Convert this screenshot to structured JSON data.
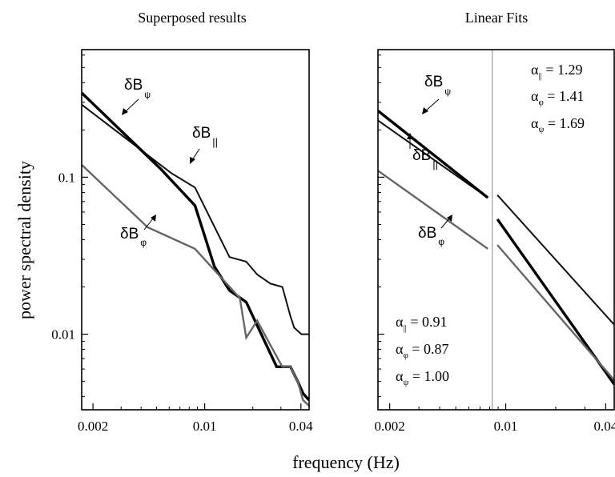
{
  "figure": {
    "ylabel": "power spectral density",
    "xlabel": "frequency (Hz)"
  },
  "chart_data": [
    {
      "type": "line",
      "title": "Superposed results",
      "xscale": "log",
      "yscale": "log",
      "xlim": [
        0.0017,
        0.045
      ],
      "ylim": [
        0.0033,
        0.65
      ],
      "xticks": [
        0.002,
        0.01,
        0.04
      ],
      "xtick_labels": [
        "0.002",
        "0.01",
        "0.04"
      ],
      "yticks": [
        0.01,
        0.1
      ],
      "ytick_labels": [
        "0.01",
        "0.1"
      ],
      "grid": false,
      "series": [
        {
          "name": "δB∥",
          "color": "#111111",
          "width": 2.0,
          "x": [
            0.0017,
            0.0062,
            0.0087,
            0.0143,
            0.0182,
            0.0213,
            0.0258,
            0.0306,
            0.0344,
            0.0363,
            0.0403,
            0.045
          ],
          "y": [
            0.29,
            0.106,
            0.086,
            0.031,
            0.029,
            0.024,
            0.021,
            0.02,
            0.013,
            0.011,
            0.01,
            0.01
          ]
        },
        {
          "name": "δBψ",
          "color": "#000000",
          "width": 3.4,
          "x": [
            0.0017,
            0.0053,
            0.0087,
            0.0115,
            0.0143,
            0.0182,
            0.0226,
            0.0282,
            0.0306,
            0.0344,
            0.0382,
            0.0412,
            0.045
          ],
          "y": [
            0.345,
            0.113,
            0.066,
            0.027,
            0.019,
            0.016,
            0.01,
            0.0062,
            0.0062,
            0.0062,
            0.005,
            0.0042,
            0.0038
          ]
        },
        {
          "name": "δBφ",
          "color": "#666666",
          "width": 2.4,
          "x": [
            0.0017,
            0.0044,
            0.0087,
            0.0166,
            0.0182,
            0.0213,
            0.0258,
            0.0306,
            0.0344,
            0.0382,
            0.0412,
            0.045
          ],
          "y": [
            0.12,
            0.048,
            0.035,
            0.017,
            0.0095,
            0.0122,
            0.0085,
            0.0062,
            0.0062,
            0.005,
            0.0038,
            0.0035
          ]
        }
      ],
      "annotations": [
        {
          "base": "δB",
          "sub": "ψ"
        },
        {
          "base": "δB",
          "sub": "||"
        },
        {
          "base": "δB",
          "sub": "φ"
        }
      ]
    },
    {
      "type": "line",
      "title": "Linear Fits",
      "xscale": "log",
      "yscale": "log",
      "xlim": [
        0.0017,
        0.045
      ],
      "ylim": [
        0.0033,
        0.65
      ],
      "xticks": [
        0.002,
        0.01,
        0.04
      ],
      "xtick_labels": [
        "0.002",
        "0.01",
        "0.04"
      ],
      "yticks": [
        0.01,
        0.1
      ],
      "grid": false,
      "vertical_line_x": 0.0083,
      "low_freq_fits": [
        {
          "name": "δB∥",
          "color": "#111111",
          "width": 2.0,
          "x": [
            0.0017,
            0.0078
          ],
          "y": [
            0.23,
            0.074
          ]
        },
        {
          "name": "δBψ",
          "color": "#000000",
          "width": 3.4,
          "x": [
            0.0017,
            0.0078
          ],
          "y": [
            0.265,
            0.074
          ]
        },
        {
          "name": "δBφ",
          "color": "#666666",
          "width": 2.4,
          "x": [
            0.0017,
            0.0078
          ],
          "y": [
            0.11,
            0.035
          ]
        }
      ],
      "high_freq_fits": [
        {
          "name": "δB∥",
          "color": "#111111",
          "width": 2.0,
          "x": [
            0.0089,
            0.045
          ],
          "y": [
            0.077,
            0.0115
          ]
        },
        {
          "name": "δBψ",
          "color": "#000000",
          "width": 3.4,
          "x": [
            0.0089,
            0.045
          ],
          "y": [
            0.054,
            0.0048
          ]
        },
        {
          "name": "δBφ",
          "color": "#666666",
          "width": 2.4,
          "x": [
            0.0089,
            0.045
          ],
          "y": [
            0.037,
            0.0051
          ]
        }
      ],
      "alpha_high": [
        {
          "sym": "α",
          "sub": "||",
          "text": " = 1.29"
        },
        {
          "sym": "α",
          "sub": "φ",
          "text": " = 1.41"
        },
        {
          "sym": "α",
          "sub": "ψ",
          "text": " = 1.69"
        }
      ],
      "alpha_low": [
        {
          "sym": "α",
          "sub": "||",
          "text": " = 0.91"
        },
        {
          "sym": "α",
          "sub": "φ",
          "text": " = 0.87"
        },
        {
          "sym": "α",
          "sub": "ψ",
          "text": " = 1.00"
        }
      ],
      "annotations": [
        {
          "base": "δB",
          "sub": "ψ"
        },
        {
          "base": "δB",
          "sub": "||"
        },
        {
          "base": "δB",
          "sub": "φ"
        }
      ]
    }
  ]
}
